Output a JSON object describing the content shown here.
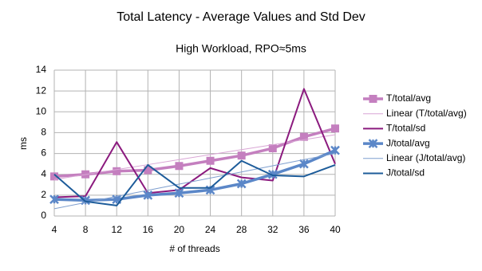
{
  "chart_data": {
    "type": "line",
    "title": "Total Latency - Average Values and Std Dev",
    "subtitle": "High Workload, RPO≈5ms",
    "x_label": "# of threads",
    "y_label": "ms",
    "x": [
      4,
      8,
      12,
      16,
      20,
      24,
      28,
      32,
      36,
      40
    ],
    "xlim": [
      4,
      40
    ],
    "xticks": [
      4,
      8,
      12,
      16,
      20,
      24,
      28,
      32,
      36,
      40
    ],
    "ylim": [
      0,
      14
    ],
    "yticks": [
      0,
      2,
      4,
      6,
      8,
      10,
      12,
      14
    ],
    "grid": true,
    "legend": "right",
    "series": [
      {
        "name": "T/total/avg",
        "color": "#c47fbf",
        "marker": "square",
        "values": [
          3.8,
          4.0,
          4.3,
          4.4,
          4.8,
          5.3,
          5.8,
          6.5,
          7.6,
          8.4
        ]
      },
      {
        "name": "Linear (T/total/avg)",
        "color": "#d9a6d5",
        "trendline": true,
        "values": [
          3.5,
          3.98,
          4.46,
          4.93,
          5.41,
          5.89,
          6.37,
          6.84,
          7.32,
          7.8
        ]
      },
      {
        "name": "T/total/sd",
        "color": "#8b1a7e",
        "values": [
          1.8,
          1.9,
          7.1,
          2.2,
          2.5,
          4.6,
          3.7,
          3.4,
          12.2,
          5.0
        ]
      },
      {
        "name": "J/total/avg",
        "color": "#5b87c8",
        "marker": "x",
        "values": [
          1.6,
          1.5,
          1.6,
          2.0,
          2.2,
          2.5,
          3.1,
          4.0,
          5.0,
          6.3
        ]
      },
      {
        "name": "Linear (J/total/avg)",
        "color": "#7f9fcf",
        "trendline": true,
        "values": [
          0.7,
          1.29,
          1.88,
          2.47,
          3.06,
          3.64,
          4.23,
          4.82,
          5.41,
          6.0
        ]
      },
      {
        "name": "J/total/sd",
        "color": "#1d5c9a",
        "values": [
          4.0,
          1.4,
          1.0,
          4.9,
          2.7,
          2.7,
          5.3,
          3.9,
          3.8,
          4.9
        ]
      }
    ]
  }
}
